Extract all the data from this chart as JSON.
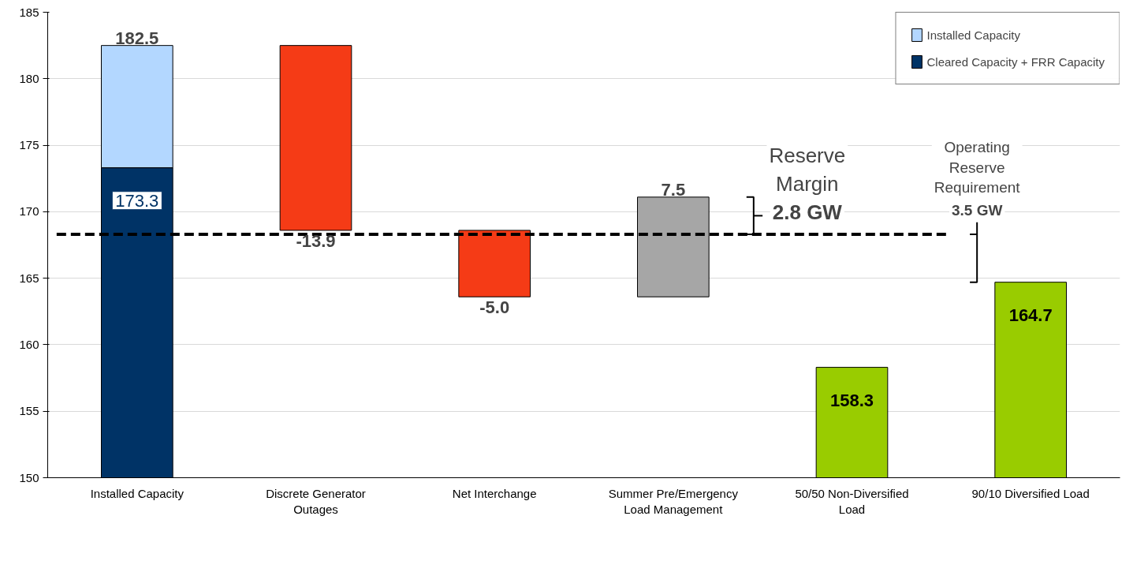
{
  "chart_data": {
    "type": "bar",
    "categories": [
      "Installed Capacity",
      "Discrete Generator Outages",
      "Net Interchange",
      "Summer Pre/Emergency Load Management",
      "50/50 Non-Diversified Load",
      "90/10 Diversified Load"
    ],
    "series": [
      {
        "name": "Installed Capacity",
        "color": "#b3d7ff",
        "values": [
          9.2,
          null,
          null,
          null,
          null,
          null
        ],
        "base": [
          173.3,
          null,
          null,
          null,
          null,
          null
        ],
        "value_labels": [
          "182.5",
          null,
          null,
          null,
          null,
          null
        ]
      },
      {
        "name": "Cleared Capacity + FRR Capacity",
        "color": "#003366",
        "values": [
          173.3,
          null,
          null,
          null,
          null,
          null
        ],
        "value_labels": [
          "173.3",
          null,
          null,
          null,
          null,
          null
        ]
      },
      {
        "color": "#f53b16",
        "values": [
          null,
          -13.9,
          -5.0,
          null,
          null,
          null
        ],
        "base": [
          null,
          182.5,
          168.6,
          null,
          null,
          null
        ],
        "value_labels": [
          null,
          "-13.9",
          "-5.0",
          null,
          null,
          null
        ]
      },
      {
        "color": "#a6a6a6",
        "values": [
          null,
          null,
          null,
          7.5,
          null,
          null
        ],
        "base": [
          null,
          null,
          null,
          163.6,
          null,
          null
        ],
        "value_labels": [
          null,
          null,
          null,
          "7.5",
          null,
          null
        ]
      },
      {
        "color": "#99cc00",
        "values": [
          null,
          null,
          null,
          null,
          158.3,
          164.7
        ],
        "value_labels": [
          null,
          null,
          null,
          null,
          "158.3",
          "164.7"
        ]
      }
    ],
    "ylim": [
      150,
      185
    ],
    "yticks": [
      150,
      155,
      160,
      165,
      170,
      175,
      180,
      185
    ],
    "grid": "y",
    "legend": "top right",
    "ref_lines": [
      {
        "axis": "y",
        "value": 168.3,
        "color": "#000000",
        "line_style": "dashed"
      }
    ],
    "annotations": [
      "Reserve Margin",
      "2.8 GW",
      "Operating Reserve Requirement",
      "3.5 GW"
    ]
  }
}
